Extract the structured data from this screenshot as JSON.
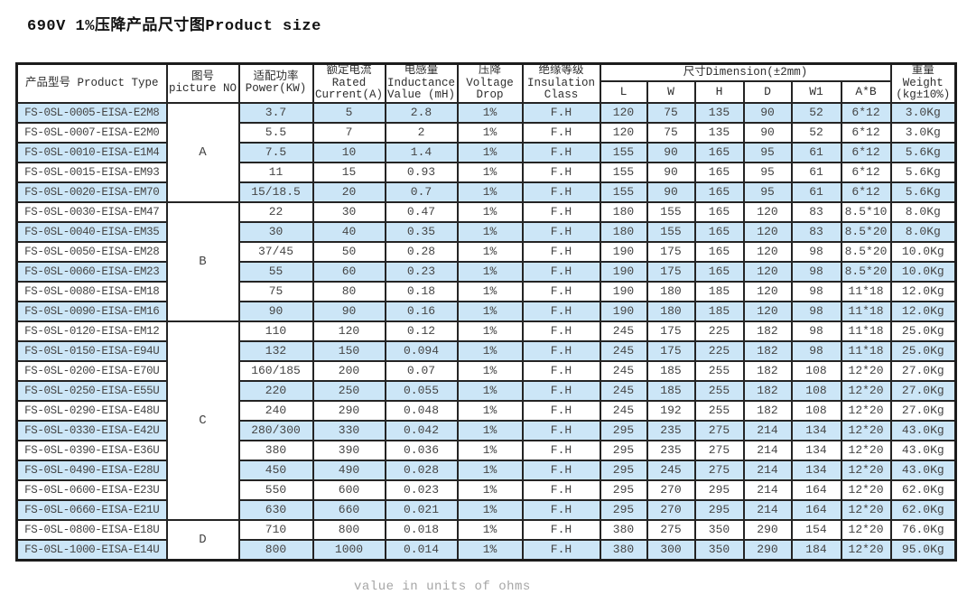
{
  "title": "690V 1%压降产品尺寸图Product size",
  "watermark": "value in units of ohms",
  "colors": {
    "row_alt": "#cce6f7",
    "grid": "#242424",
    "text": "#444444",
    "background": "#ffffff"
  },
  "table": {
    "headers": {
      "product_type": "产品型号 Product Type",
      "picture_no": "图号\npicture NO",
      "power": "适配功率\nPower(KW)",
      "current": "额定电流\nRated\nCurrent(A)",
      "inductance": "电感量\nInductance\nValue (mH)",
      "voltage_drop": "压降\nVoltage\nDrop",
      "insulation": "绝缘等级\nInsulation\nClass",
      "dimension": "尺寸Dimension(±2mm)",
      "dim_sub": [
        "L",
        "W",
        "H",
        "D",
        "W1",
        "A*B"
      ],
      "weight": "重量\nWeight\n(kg±10%)"
    },
    "columns": [
      "model",
      "power",
      "current",
      "inductance",
      "voltage drop",
      "insulation",
      "L",
      "W",
      "H",
      "D",
      "W1",
      "A B",
      "weight"
    ],
    "groups": [
      {
        "picture_no": "A",
        "rows": [
          [
            "FS-0SL-0005-EISA-E2M8",
            "3.7",
            "5",
            "2.8",
            "1%",
            "F.H",
            "120",
            "75",
            "135",
            "90",
            "52",
            "6*12",
            "3.0Kg"
          ],
          [
            "FS-0SL-0007-EISA-E2M0",
            "5.5",
            "7",
            "2",
            "1%",
            "F.H",
            "120",
            "75",
            "135",
            "90",
            "52",
            "6*12",
            "3.0Kg"
          ],
          [
            "FS-0SL-0010-EISA-E1M4",
            "7.5",
            "10",
            "1.4",
            "1%",
            "F.H",
            "155",
            "90",
            "165",
            "95",
            "61",
            "6*12",
            "5.6Kg"
          ],
          [
            "FS-0SL-0015-EISA-EM93",
            "11",
            "15",
            "0.93",
            "1%",
            "F.H",
            "155",
            "90",
            "165",
            "95",
            "61",
            "6*12",
            "5.6Kg"
          ],
          [
            "FS-0SL-0020-EISA-EM70",
            "15/18.5",
            "20",
            "0.7",
            "1%",
            "F.H",
            "155",
            "90",
            "165",
            "95",
            "61",
            "6*12",
            "5.6Kg"
          ]
        ]
      },
      {
        "picture_no": "B",
        "rows": [
          [
            "FS-0SL-0030-EISA-EM47",
            "22",
            "30",
            "0.47",
            "1%",
            "F.H",
            "180",
            "155",
            "165",
            "120",
            "83",
            "8.5*10",
            "8.0Kg"
          ],
          [
            "FS-0SL-0040-EISA-EM35",
            "30",
            "40",
            "0.35",
            "1%",
            "F.H",
            "180",
            "155",
            "165",
            "120",
            "83",
            "8.5*20",
            "8.0Kg"
          ],
          [
            "FS-0SL-0050-EISA-EM28",
            "37/45",
            "50",
            "0.28",
            "1%",
            "F.H",
            "190",
            "175",
            "165",
            "120",
            "98",
            "8.5*20",
            "10.0Kg"
          ],
          [
            "FS-0SL-0060-EISA-EM23",
            "55",
            "60",
            "0.23",
            "1%",
            "F.H",
            "190",
            "175",
            "165",
            "120",
            "98",
            "8.5*20",
            "10.0Kg"
          ],
          [
            "FS-0SL-0080-EISA-EM18",
            "75",
            "80",
            "0.18",
            "1%",
            "F.H",
            "190",
            "180",
            "185",
            "120",
            "98",
            "11*18",
            "12.0Kg"
          ],
          [
            "FS-0SL-0090-EISA-EM16",
            "90",
            "90",
            "0.16",
            "1%",
            "F.H",
            "190",
            "180",
            "185",
            "120",
            "98",
            "11*18",
            "12.0Kg"
          ]
        ]
      },
      {
        "picture_no": "C",
        "rows": [
          [
            "FS-0SL-0120-EISA-EM12",
            "110",
            "120",
            "0.12",
            "1%",
            "F.H",
            "245",
            "175",
            "225",
            "182",
            "98",
            "11*18",
            "25.0Kg"
          ],
          [
            "FS-0SL-0150-EISA-E94U",
            "132",
            "150",
            "0.094",
            "1%",
            "F.H",
            "245",
            "175",
            "225",
            "182",
            "98",
            "11*18",
            "25.0Kg"
          ],
          [
            "FS-0SL-0200-EISA-E70U",
            "160/185",
            "200",
            "0.07",
            "1%",
            "F.H",
            "245",
            "185",
            "255",
            "182",
            "108",
            "12*20",
            "27.0Kg"
          ],
          [
            "FS-0SL-0250-EISA-E55U",
            "220",
            "250",
            "0.055",
            "1%",
            "F.H",
            "245",
            "185",
            "255",
            "182",
            "108",
            "12*20",
            "27.0Kg"
          ],
          [
            "FS-0SL-0290-EISA-E48U",
            "240",
            "290",
            "0.048",
            "1%",
            "F.H",
            "245",
            "192",
            "255",
            "182",
            "108",
            "12*20",
            "27.0Kg"
          ],
          [
            "FS-0SL-0330-EISA-E42U",
            "280/300",
            "330",
            "0.042",
            "1%",
            "F.H",
            "295",
            "235",
            "275",
            "214",
            "134",
            "12*20",
            "43.0Kg"
          ],
          [
            "FS-0SL-0390-EISA-E36U",
            "380",
            "390",
            "0.036",
            "1%",
            "F.H",
            "295",
            "235",
            "275",
            "214",
            "134",
            "12*20",
            "43.0Kg"
          ],
          [
            "FS-0SL-0490-EISA-E28U",
            "450",
            "490",
            "0.028",
            "1%",
            "F.H",
            "295",
            "245",
            "275",
            "214",
            "134",
            "12*20",
            "43.0Kg"
          ],
          [
            "FS-0SL-0600-EISA-E23U",
            "550",
            "600",
            "0.023",
            "1%",
            "F.H",
            "295",
            "270",
            "295",
            "214",
            "164",
            "12*20",
            "62.0Kg"
          ],
          [
            "FS-0SL-0660-EISA-E21U",
            "630",
            "660",
            "0.021",
            "1%",
            "F.H",
            "295",
            "270",
            "295",
            "214",
            "164",
            "12*20",
            "62.0Kg"
          ]
        ]
      },
      {
        "picture_no": "D",
        "rows": [
          [
            "FS-0SL-0800-EISA-E18U",
            "710",
            "800",
            "0.018",
            "1%",
            "F.H",
            "380",
            "275",
            "350",
            "290",
            "154",
            "12*20",
            "76.0Kg"
          ],
          [
            "FS-0SL-1000-EISA-E14U",
            "800",
            "1000",
            "0.014",
            "1%",
            "F.H",
            "380",
            "300",
            "350",
            "290",
            "184",
            "12*20",
            "95.0Kg"
          ]
        ]
      }
    ]
  }
}
